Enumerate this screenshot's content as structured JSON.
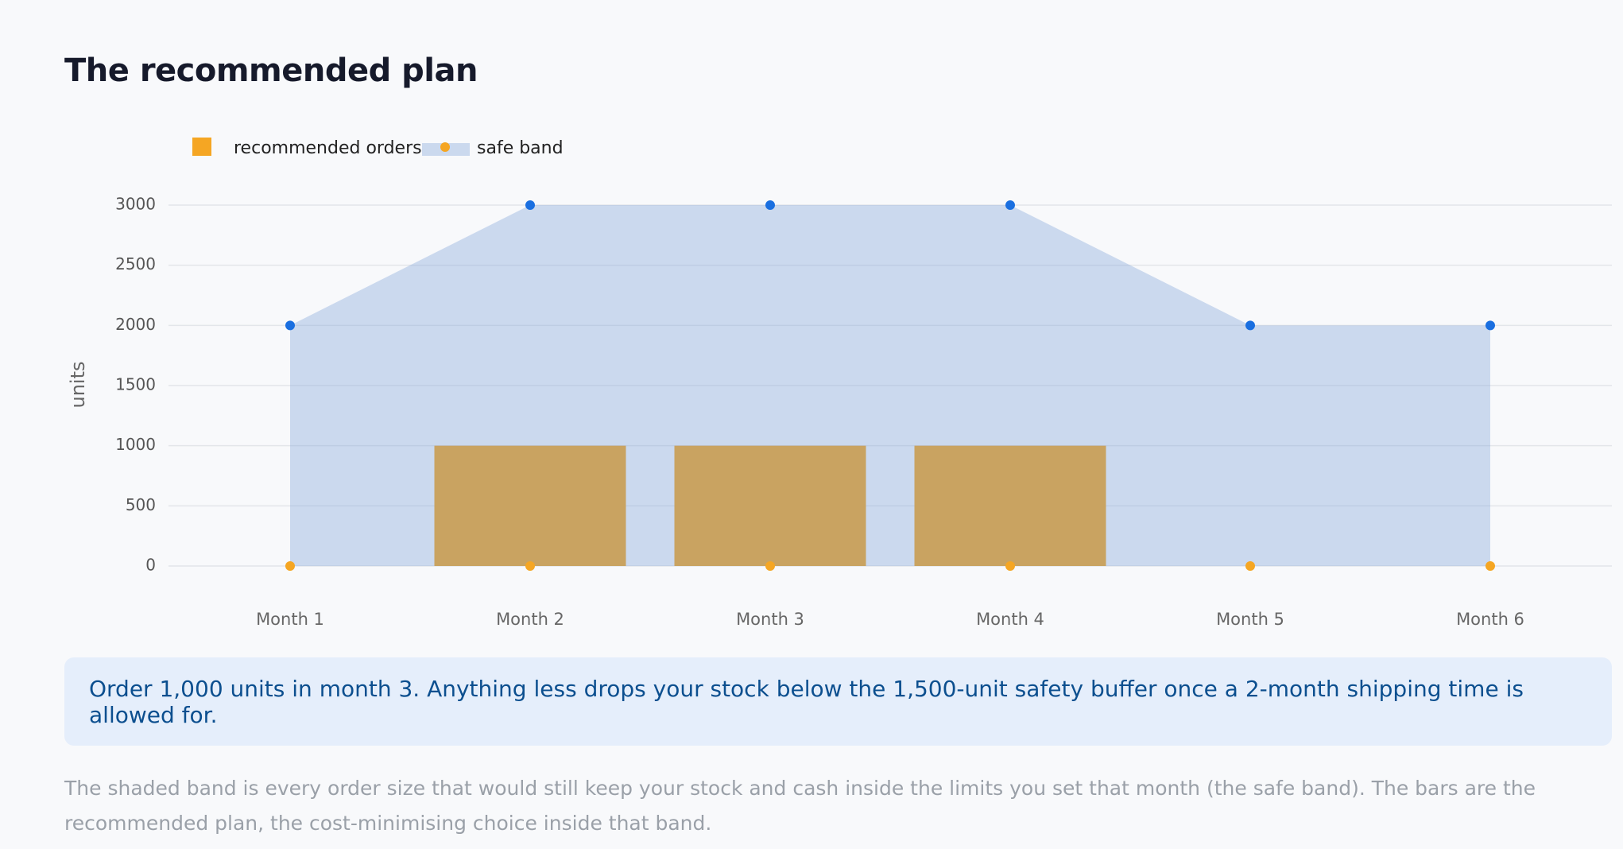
{
  "title": "The recommended plan",
  "chart_data": {
    "type": "bar",
    "categories": [
      "Month 1",
      "Month 2",
      "Month 3",
      "Month 4",
      "Month 5",
      "Month 6"
    ],
    "series": [
      {
        "name": "recommended orders",
        "color": "#f5a623",
        "values": [
          0,
          1000,
          1000,
          1000,
          0,
          0
        ]
      }
    ],
    "band": {
      "name": "safe band",
      "color": "#789fd7",
      "lower": [
        0,
        0,
        0,
        0,
        0,
        0
      ],
      "upper": [
        2000,
        3000,
        3000,
        3000,
        2000,
        2000
      ],
      "lower_color": "#f5a623",
      "upper_color": "#1a6fe0"
    },
    "y_label": "units",
    "ylim": [
      0,
      3000
    ],
    "yticks": [
      0,
      500,
      1000,
      1500,
      2000,
      2500,
      3000
    ],
    "grid": true
  },
  "callout": "Order 1,000 units in month 3. Anything less drops your stock below the 1,500-unit safety buffer once a 2-month shipping time is allowed for.",
  "caption": "The shaded band is every order size that would still keep your stock and cash inside the limits you set that month (the safe band). The bars are the recommended plan, the cost-minimising choice inside that band."
}
